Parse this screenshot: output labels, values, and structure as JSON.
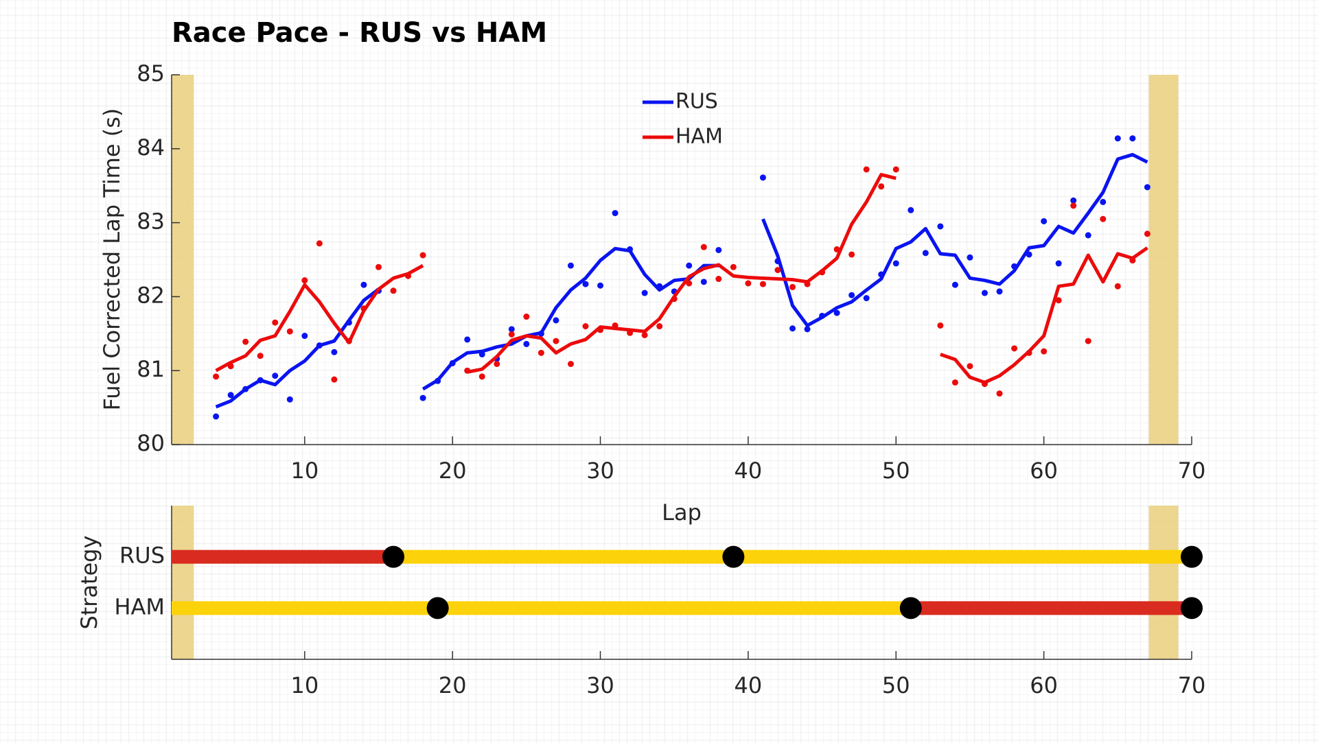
{
  "chart_data": [
    {
      "type": "line",
      "title": "Race Pace - RUS vs HAM",
      "x_label": "Lap",
      "y_label": "Fuel Corrected Lap Time (s)",
      "xlim": [
        1,
        70
      ],
      "xticks": [
        10,
        20,
        30,
        40,
        50,
        60,
        70
      ],
      "ylim": [
        80,
        85
      ],
      "yticks": [
        80,
        81,
        82,
        83,
        84,
        85
      ],
      "legend": "upper center",
      "shaded_ranges": [
        [
          1,
          2.5
        ],
        [
          67.1,
          69.1
        ]
      ],
      "shade_color": "#e9cf7c",
      "x": [
        4,
        5,
        6,
        7,
        8,
        9,
        10,
        11,
        12,
        13,
        14,
        15,
        16,
        17,
        18,
        19,
        20,
        21,
        22,
        23,
        24,
        25,
        26,
        27,
        28,
        29,
        30,
        31,
        32,
        33,
        34,
        35,
        36,
        37,
        38,
        39,
        40,
        41,
        42,
        43,
        44,
        45,
        46,
        47,
        48,
        49,
        50,
        51,
        52,
        53,
        54,
        55,
        56,
        57,
        58,
        59,
        60,
        61,
        62,
        63,
        64,
        65,
        66,
        67
      ],
      "series": [
        {
          "name": "RUS",
          "color": "#0a14f0",
          "values": [
            80.51,
            80.59,
            80.75,
            80.87,
            80.81,
            81.0,
            81.13,
            81.34,
            81.4,
            81.68,
            81.95,
            82.1,
            null,
            null,
            80.75,
            80.87,
            81.11,
            81.24,
            81.26,
            81.32,
            81.36,
            81.47,
            81.51,
            81.85,
            82.09,
            82.25,
            82.49,
            82.65,
            82.62,
            82.3,
            82.09,
            82.22,
            82.24,
            82.42,
            82.42,
            null,
            null,
            83.05,
            82.55,
            81.88,
            81.61,
            81.72,
            81.85,
            81.93,
            82.09,
            82.24,
            82.65,
            82.74,
            82.92,
            82.58,
            82.56,
            82.25,
            82.22,
            82.17,
            82.35,
            82.66,
            82.69,
            82.95,
            82.86,
            83.13,
            83.41,
            83.86,
            83.92,
            83.82
          ],
          "points": [
            80.38,
            80.67,
            80.75,
            80.87,
            80.93,
            80.61,
            81.47,
            81.34,
            81.25,
            81.65,
            82.16,
            82.08,
            null,
            null,
            80.63,
            80.86,
            81.1,
            81.42,
            81.22,
            81.16,
            81.56,
            81.36,
            81.5,
            81.68,
            82.42,
            82.17,
            82.15,
            83.13,
            82.64,
            82.05,
            82.14,
            82.07,
            82.42,
            82.2,
            82.63,
            null,
            null,
            83.61,
            82.48,
            81.57,
            81.56,
            81.74,
            81.78,
            82.02,
            81.98,
            82.3,
            82.45,
            83.17,
            82.59,
            82.95,
            82.16,
            82.53,
            82.05,
            82.07,
            82.41,
            82.57,
            83.02,
            82.45,
            83.3,
            82.83,
            83.28,
            84.14,
            84.14,
            83.48
          ]
        },
        {
          "name": "HAM",
          "color": "#ec0b0b",
          "values": [
            81.0,
            81.11,
            81.2,
            81.41,
            81.47,
            81.8,
            82.16,
            81.93,
            81.64,
            81.38,
            81.81,
            82.1,
            82.25,
            82.31,
            82.42,
            null,
            null,
            80.98,
            81.02,
            81.19,
            81.41,
            81.47,
            81.44,
            81.24,
            81.36,
            81.42,
            81.59,
            81.57,
            81.55,
            81.53,
            81.7,
            82.0,
            82.27,
            82.38,
            82.43,
            82.28,
            82.26,
            82.25,
            82.24,
            82.23,
            82.2,
            82.35,
            82.52,
            82.98,
            83.28,
            83.65,
            83.6,
            null,
            null,
            81.22,
            81.15,
            80.91,
            80.84,
            80.93,
            81.08,
            81.26,
            81.47,
            82.14,
            82.17,
            82.56,
            82.2,
            82.58,
            82.52,
            82.66
          ],
          "points": [
            80.92,
            81.06,
            81.39,
            81.2,
            81.65,
            81.53,
            82.22,
            82.72,
            80.88,
            81.4,
            81.84,
            82.4,
            82.08,
            82.28,
            82.56,
            null,
            null,
            81.0,
            80.92,
            81.09,
            81.49,
            81.73,
            81.24,
            81.4,
            81.09,
            81.6,
            81.55,
            81.61,
            81.51,
            81.48,
            81.6,
            81.97,
            82.18,
            82.67,
            82.24,
            82.4,
            82.18,
            82.17,
            82.36,
            82.13,
            82.17,
            82.33,
            82.64,
            82.57,
            83.72,
            83.49,
            83.72,
            null,
            null,
            81.61,
            80.84,
            81.06,
            80.82,
            80.69,
            81.3,
            81.24,
            81.26,
            81.95,
            83.23,
            81.4,
            83.05,
            82.14,
            82.49,
            82.85
          ]
        }
      ]
    },
    {
      "type": "strategy",
      "y_label": "Strategy",
      "categories": [
        "RUS",
        "HAM"
      ],
      "xlim": [
        1,
        70
      ],
      "xticks": [
        10,
        20,
        30,
        40,
        50,
        60,
        70
      ],
      "shaded_ranges": [
        [
          1,
          2.5
        ],
        [
          67.1,
          69.1
        ]
      ],
      "shade_color": "#e9cf7c",
      "stints": [
        [
          {
            "start": 1,
            "end": 16,
            "color": "#d92b1f"
          },
          {
            "start": 16,
            "end": 39,
            "color": "#fcd20a"
          },
          {
            "start": 39,
            "end": 70,
            "color": "#fcd20a"
          }
        ],
        [
          {
            "start": 1,
            "end": 19,
            "color": "#fcd20a"
          },
          {
            "start": 19,
            "end": 51,
            "color": "#fcd20a"
          },
          {
            "start": 51,
            "end": 70,
            "color": "#d92b1f"
          }
        ]
      ]
    }
  ]
}
